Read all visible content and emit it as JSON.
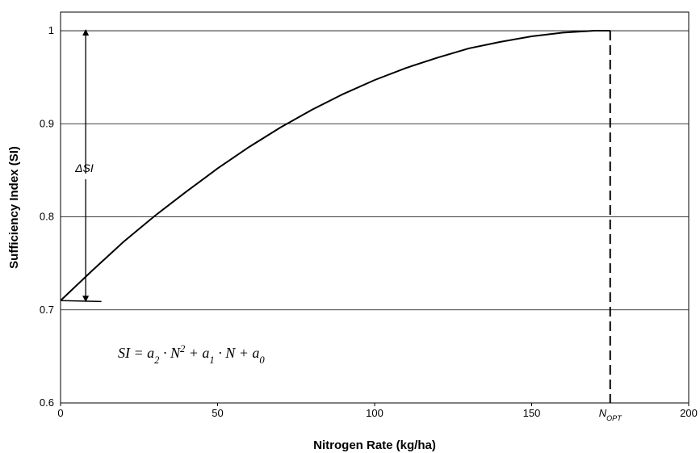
{
  "chart_data": {
    "type": "line",
    "x_label": "Nitrogen Rate (kg/ha)",
    "y_label": "Sufficiency Index (SI)",
    "x": [
      0,
      10,
      20,
      30,
      40,
      50,
      60,
      70,
      80,
      90,
      100,
      110,
      120,
      130,
      140,
      150,
      160,
      170,
      175
    ],
    "series": [
      {
        "color": "#000000",
        "values": [
          0.71,
          0.742,
          0.773,
          0.801,
          0.827,
          0.852,
          0.875,
          0.896,
          0.915,
          0.932,
          0.947,
          0.96,
          0.971,
          0.981,
          0.988,
          0.994,
          0.998,
          1.0,
          1.0
        ]
      }
    ],
    "xlim": [
      0,
      200
    ],
    "xticks": [
      0,
      50,
      100,
      150,
      200
    ],
    "ylim": [
      0.6,
      1.02
    ],
    "yticks": [
      0.6,
      0.7,
      0.8,
      0.9,
      1
    ],
    "grid": true,
    "annotations": {
      "n_opt": {
        "x": 175,
        "label": [
          {
            "text": "N",
            "pos": "base"
          },
          {
            "text": "OPT",
            "pos": "sub"
          }
        ],
        "style": "dashed"
      },
      "delta_si": {
        "x": 8,
        "from": 0.71,
        "to": 1,
        "label": "ΔSI"
      },
      "baseline": {
        "x": [
          0,
          13
        ],
        "y": [
          0.71,
          0.709
        ]
      },
      "equation": [
        {
          "text": "SI = a",
          "pos": "base"
        },
        {
          "text": "2",
          "pos": "sub"
        },
        {
          "text": " · N",
          "pos": "base"
        },
        {
          "text": "2",
          "pos": "sup"
        },
        {
          "text": " + a",
          "pos": "base"
        },
        {
          "text": "1",
          "pos": "sub"
        },
        {
          "text": " · N + a",
          "pos": "base"
        },
        {
          "text": "0",
          "pos": "sub"
        }
      ]
    }
  }
}
